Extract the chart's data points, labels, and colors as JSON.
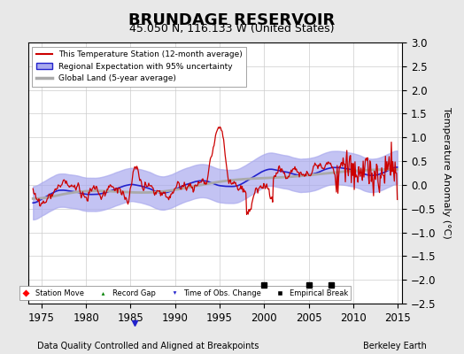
{
  "title": "BRUNDAGE RESERVOIR",
  "subtitle": "45.050 N, 116.133 W (United States)",
  "xlabel_left": "Data Quality Controlled and Aligned at Breakpoints",
  "xlabel_right": "Berkeley Earth",
  "ylabel": "Temperature Anomaly (°C)",
  "ylim": [
    -2.5,
    3.0
  ],
  "yticks": [
    -2.5,
    -2,
    -1.5,
    -1,
    -0.5,
    0,
    0.5,
    1,
    1.5,
    2,
    2.5,
    3
  ],
  "xlim": [
    1973.5,
    2015.5
  ],
  "xticks": [
    1975,
    1980,
    1985,
    1990,
    1995,
    2000,
    2005,
    2010,
    2015
  ],
  "background_color": "#e8e8e8",
  "plot_bg_color": "#ffffff",
  "legend_entries": [
    "This Temperature Station (12-month average)",
    "Regional Expectation with 95% uncertainty",
    "Global Land (5-year average)"
  ],
  "station_color": "#cc0000",
  "regional_color": "#2222cc",
  "regional_fill_color": "#aaaaee",
  "global_color": "#aaaaaa",
  "empirical_breaks": [
    2000.0,
    2005.0,
    2007.5
  ],
  "obs_changes": [
    1985.5
  ],
  "title_fontsize": 13,
  "subtitle_fontsize": 9,
  "tick_fontsize": 8.5,
  "label_fontsize": 8
}
